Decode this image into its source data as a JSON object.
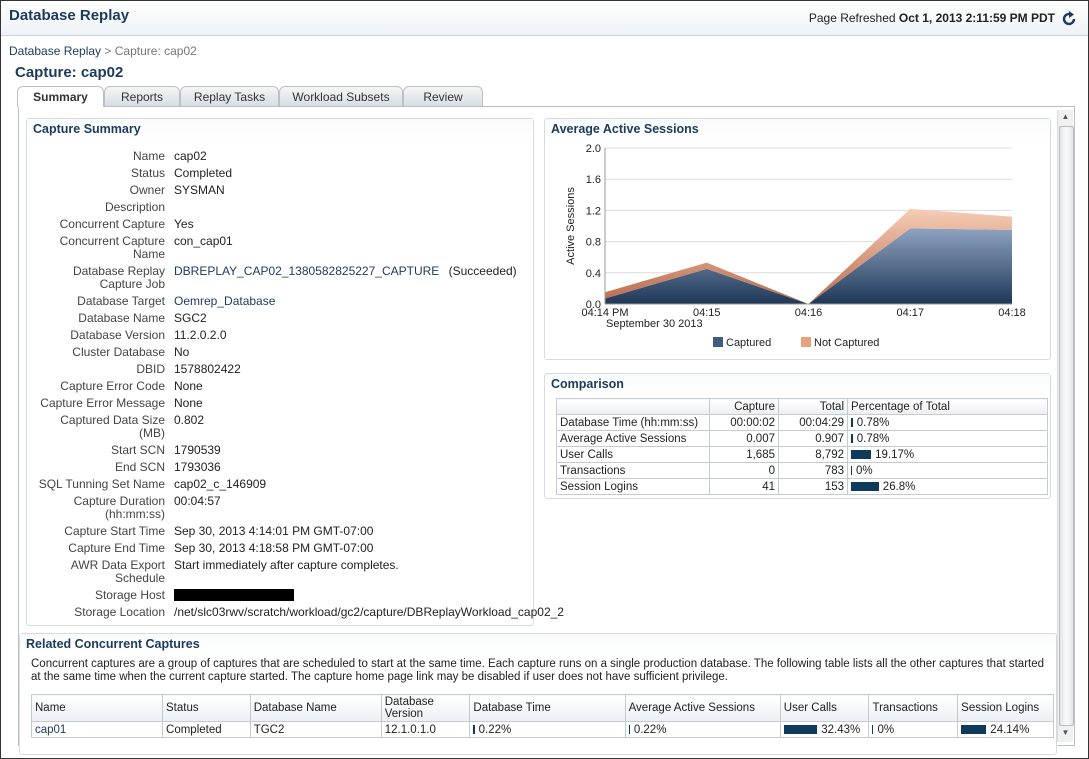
{
  "header": {
    "title": "Database Replay",
    "refresh_label": "Page Refreshed",
    "refresh_time": "Oct 1, 2013 2:11:59 PM PDT"
  },
  "breadcrumb": {
    "parent": "Database Replay",
    "separator": ">",
    "current": "Capture: cap02"
  },
  "page_title": "Capture: cap02",
  "tabs": {
    "items": [
      "Summary",
      "Reports",
      "Replay Tasks",
      "Workload Subsets",
      "Review"
    ],
    "selected": 0
  },
  "capture_summary": {
    "title": "Capture Summary",
    "fields": [
      {
        "label": "Name",
        "value": "cap02"
      },
      {
        "label": "Status",
        "value": "Completed"
      },
      {
        "label": "Owner",
        "value": "SYSMAN"
      },
      {
        "label": "Description"
      },
      {
        "label": "Concurrent Capture",
        "value": "Yes"
      },
      {
        "label": "Concurrent Capture Name",
        "value": "con_cap01"
      },
      {
        "label": "Database Replay Capture Job",
        "value": "DBREPLAY_CAP02_1380582825227_CAPTURE",
        "link": true,
        "note": "(Succeeded)"
      },
      {
        "label": "Database Target",
        "value": "Oemrep_Database",
        "link": true
      },
      {
        "label": "Database Name",
        "value": "SGC2"
      },
      {
        "label": "Database Version",
        "value": "11.2.0.2.0"
      },
      {
        "label": "Cluster Database",
        "value": "No"
      },
      {
        "label": "DBID",
        "value": "1578802422"
      },
      {
        "label": "Capture Error Code",
        "value": "None"
      },
      {
        "label": "Capture Error Message",
        "value": "None"
      },
      {
        "label": "Captured Data Size (MB)",
        "value": "0.802"
      },
      {
        "label": "Start SCN",
        "value": "1790539"
      },
      {
        "label": "End SCN",
        "value": "1793036"
      },
      {
        "label": "SQL Tunning Set Name",
        "value": "cap02_c_146909"
      },
      {
        "label": "Capture Duration (hh:mm:ss)",
        "value": "00:04:57"
      },
      {
        "label": "Capture Start Time",
        "value": "Sep 30, 2013 4:14:01 PM GMT-07:00"
      },
      {
        "label": "Capture End Time",
        "value": "Sep 30, 2013 4:18:58 PM GMT-07:00"
      },
      {
        "label": "AWR Data Export Schedule",
        "value": "Start immediately after capture completes."
      },
      {
        "label": "Storage Host",
        "redacted": true
      },
      {
        "label": "Storage Location",
        "value": "/net/slc03rwv/scratch/workload/gc2/capture/DBReplayWorkload_cap02_2"
      }
    ]
  },
  "chart_data": {
    "type": "area",
    "stacked": true,
    "title": "Average Active Sessions",
    "categories": [
      "04:14 PM",
      "04:15",
      "04:16",
      "04:17",
      "04:18"
    ],
    "x_sublabel": "September 30 2013",
    "ylabel": "Active Sessions",
    "ylim": [
      0,
      2
    ],
    "yticks": [
      {
        "value": 0,
        "label": "0.0"
      },
      {
        "value": 0.4,
        "label": "0.4"
      },
      {
        "value": 0.8,
        "label": "0.8"
      },
      {
        "value": 1.2,
        "label": "1.2"
      },
      {
        "value": 1.6,
        "label": "1.6"
      },
      {
        "value": 2,
        "label": "2.0"
      }
    ],
    "grid": true,
    "legend": "bottom",
    "series": [
      {
        "name": "Captured",
        "color": "#3f5b80",
        "values": [
          0.07,
          0.45,
          0,
          0.97,
          0.95
        ]
      },
      {
        "name": "Not Captured",
        "color": "#e6a17d",
        "values": [
          0.08,
          0.08,
          0,
          0.25,
          0.17
        ]
      }
    ]
  },
  "comparison": {
    "title": "Comparison",
    "columns": [
      "Capture",
      "Total",
      "Percentage of Total"
    ],
    "rows": [
      {
        "metric": "Database Time (hh:mm:ss)",
        "capture": "00:00:02",
        "total": "00:04:29",
        "percent": {
          "value": 0.78,
          "label": "0.78%"
        }
      },
      {
        "metric": "Average Active Sessions",
        "capture": "0.007",
        "total": "0.907",
        "percent": {
          "value": 0.78,
          "label": "0.78%"
        }
      },
      {
        "metric": "User Calls",
        "capture": "1,685",
        "total": "8,792",
        "percent": {
          "value": 19.17,
          "label": "19.17%"
        }
      },
      {
        "metric": "Transactions",
        "capture": "0",
        "total": "783",
        "percent": {
          "value": 0,
          "label": "0%"
        }
      },
      {
        "metric": "Session Logins",
        "capture": "41",
        "total": "153",
        "percent": {
          "value": 26.8,
          "label": "26.8%"
        }
      }
    ]
  },
  "related": {
    "title": "Related Concurrent Captures",
    "description": "Concurrent captures are a group of captures that are scheduled to start at the same time. Each capture runs on a single production database. The following table lists all the other captures that started at the same time when the current capture started. The capture home page link may be disabled if user does not have sufficient privilege.",
    "columns": [
      "Name",
      "Status",
      "Database Name",
      "Database Version",
      "Database Time",
      "Average Active Sessions",
      "User Calls",
      "Transactions",
      "Session Logins"
    ],
    "rows": [
      {
        "cells": [
          "cap01",
          "Completed",
          "TGC2",
          "12.1.0.1.0"
        ],
        "link": true,
        "percents": [
          {
            "value": 0.22,
            "label": "0.22%"
          },
          {
            "value": 0.22,
            "label": "0.22%"
          },
          {
            "value": 32.43,
            "label": "32.43%"
          },
          {
            "value": 0,
            "label": "0%"
          },
          {
            "value": 24.14,
            "label": "24.14%"
          }
        ]
      }
    ]
  }
}
